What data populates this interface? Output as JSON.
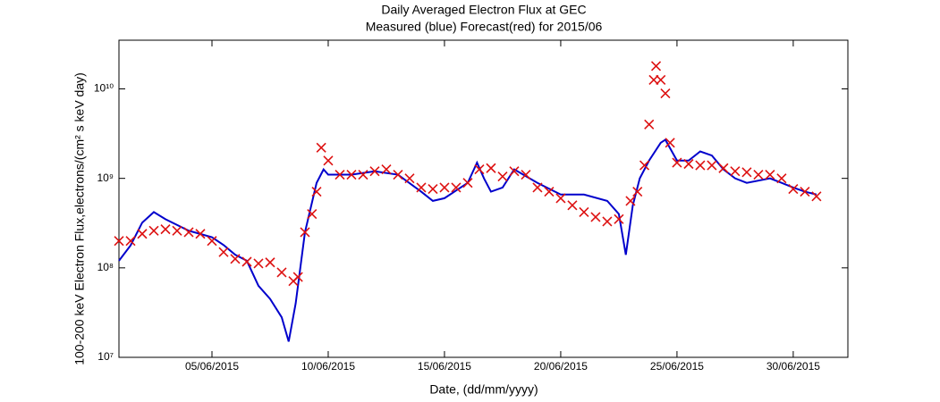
{
  "chart_data": {
    "type": "line",
    "title": "Daily Averaged Electron Flux at GEC",
    "subtitle": "Measured (blue) Forecast(red) for 2015/06",
    "xlabel": "Date, (dd/mm/yyyy)",
    "ylabel": "100-200 keV Electron Flux,electrons/(cm² s keV day)",
    "log_y": true,
    "xlim": [
      1,
      32.35
    ],
    "xticks": [
      {
        "value": 5,
        "label": "05/06/2015"
      },
      {
        "value": 10,
        "label": "10/06/2015"
      },
      {
        "value": 15,
        "label": "15/06/2015"
      },
      {
        "value": 20,
        "label": "20/06/2015"
      },
      {
        "value": 25,
        "label": "25/06/2015"
      },
      {
        "value": 30,
        "label": "30/06/2015"
      }
    ],
    "ylim": [
      10000000.0,
      35000000000.0
    ],
    "yticks": [
      {
        "value": 10000000.0,
        "label": "10⁷"
      },
      {
        "value": 100000000.0,
        "label": "10⁸"
      },
      {
        "value": 1000000000.0,
        "label": "10⁹"
      },
      {
        "value": 10000000000.0,
        "label": "10¹⁰"
      }
    ],
    "series": [
      {
        "name": "Measured",
        "color": "#0000cc",
        "style": "line",
        "x": [
          1,
          1.5,
          2,
          2.5,
          3,
          4,
          5,
          5.5,
          6,
          6.5,
          7,
          7.5,
          8,
          8.3,
          8.6,
          9,
          9.5,
          9.8,
          10,
          11,
          12,
          13,
          14,
          14.5,
          15,
          16,
          16.4,
          16.7,
          17,
          17.5,
          18,
          19,
          20,
          21,
          22,
          22.5,
          22.8,
          23.1,
          23.4,
          23.8,
          24.3,
          24.5,
          25,
          25.5,
          26,
          26.5,
          27,
          27.5,
          28,
          29,
          29.5,
          30,
          30.5,
          31
        ],
        "values": [
          120000000.0,
          178000000.0,
          320000000.0,
          420000000.0,
          350000000.0,
          260000000.0,
          220000000.0,
          180000000.0,
          140000000.0,
          120000000.0,
          63000000.0,
          45000000.0,
          28000000.0,
          15000000.0,
          40000000.0,
          250000000.0,
          890000000.0,
          1260000000.0,
          1100000000.0,
          1100000000.0,
          1200000000.0,
          1100000000.0,
          710000000.0,
          560000000.0,
          600000000.0,
          890000000.0,
          1500000000.0,
          1000000000.0,
          710000000.0,
          790000000.0,
          1260000000.0,
          890000000.0,
          660000000.0,
          660000000.0,
          560000000.0,
          400000000.0,
          140000000.0,
          500000000.0,
          1000000000.0,
          1580000000.0,
          2500000000.0,
          2700000000.0,
          1580000000.0,
          1580000000.0,
          2000000000.0,
          1800000000.0,
          1260000000.0,
          1000000000.0,
          890000000.0,
          1000000000.0,
          890000000.0,
          790000000.0,
          710000000.0,
          660000000.0
        ]
      },
      {
        "name": "Forecast",
        "color": "#dd1111",
        "style": "x",
        "x": [
          1,
          1.5,
          2,
          2.5,
          3,
          3.5,
          4,
          4.5,
          5,
          5.5,
          6,
          6.5,
          7,
          7.5,
          8,
          8.5,
          8.7,
          9,
          9.3,
          9.5,
          9.7,
          10,
          10.5,
          11,
          11.5,
          12,
          12.5,
          13,
          13.5,
          14,
          14.5,
          15,
          15.5,
          16,
          16.5,
          17,
          17.5,
          18,
          18.5,
          19,
          19.5,
          20,
          20.5,
          21,
          21.5,
          22,
          22.5,
          23,
          23.3,
          23.6,
          23.8,
          24,
          24.1,
          24.3,
          24.5,
          24.7,
          25,
          25.5,
          26,
          26.5,
          27,
          27.5,
          28,
          28.5,
          29,
          29.5,
          30,
          30.5,
          31
        ],
        "values": [
          200000000.0,
          200000000.0,
          240000000.0,
          260000000.0,
          270000000.0,
          260000000.0,
          250000000.0,
          240000000.0,
          200000000.0,
          150000000.0,
          126000000.0,
          117000000.0,
          112000000.0,
          115000000.0,
          89000000.0,
          71000000.0,
          79000000.0,
          250000000.0,
          400000000.0,
          710000000.0,
          2200000000.0,
          1580000000.0,
          1100000000.0,
          1100000000.0,
          1100000000.0,
          1200000000.0,
          1260000000.0,
          1100000000.0,
          1000000000.0,
          790000000.0,
          760000000.0,
          790000000.0,
          790000000.0,
          890000000.0,
          1260000000.0,
          1300000000.0,
          1050000000.0,
          1200000000.0,
          1100000000.0,
          790000000.0,
          710000000.0,
          600000000.0,
          500000000.0,
          420000000.0,
          370000000.0,
          330000000.0,
          350000000.0,
          560000000.0,
          710000000.0,
          1400000000.0,
          4000000000.0,
          12600000000.0,
          18000000000.0,
          12600000000.0,
          8900000000.0,
          2500000000.0,
          1500000000.0,
          1450000000.0,
          1400000000.0,
          1400000000.0,
          1300000000.0,
          1200000000.0,
          1170000000.0,
          1100000000.0,
          1100000000.0,
          1000000000.0,
          760000000.0,
          710000000.0,
          630000000.0
        ]
      }
    ]
  }
}
